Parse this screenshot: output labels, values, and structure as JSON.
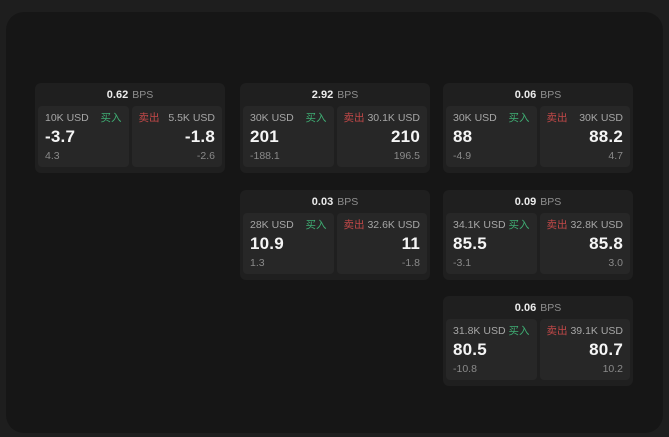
{
  "labels": {
    "buy": "买入",
    "sell": "卖出",
    "bps": "BPS"
  },
  "colors": {
    "background": "#1e1e1e",
    "window": "#161616",
    "card": "#1f1f1f",
    "panel": "#272727",
    "buy": "#3fae74",
    "sell": "#c24848"
  },
  "cards": [
    {
      "bps": "0.62",
      "buy": {
        "amount": "10K USD",
        "price": "-3.7",
        "delta": "4.3"
      },
      "sell": {
        "amount": "5.5K USD",
        "price": "-1.8",
        "delta": "-2.6"
      }
    },
    {
      "bps": "2.92",
      "buy": {
        "amount": "30K USD",
        "price": "201",
        "delta": "-188.1"
      },
      "sell": {
        "amount": "30.1K USD",
        "price": "210",
        "delta": "196.5"
      }
    },
    {
      "bps": "0.06",
      "buy": {
        "amount": "30K USD",
        "price": "88",
        "delta": "-4.9"
      },
      "sell": {
        "amount": "30K USD",
        "price": "88.2",
        "delta": "4.7"
      }
    },
    {
      "bps": "0.03",
      "buy": {
        "amount": "28K USD",
        "price": "10.9",
        "delta": "1.3"
      },
      "sell": {
        "amount": "32.6K USD",
        "price": "11",
        "delta": "-1.8"
      }
    },
    {
      "bps": "0.09",
      "buy": {
        "amount": "34.1K USD",
        "price": "85.5",
        "delta": "-3.1"
      },
      "sell": {
        "amount": "32.8K USD",
        "price": "85.8",
        "delta": "3.0"
      }
    },
    {
      "bps": "0.06",
      "buy": {
        "amount": "31.8K USD",
        "price": "80.5",
        "delta": "-10.8"
      },
      "sell": {
        "amount": "39.1K USD",
        "price": "80.7",
        "delta": "10.2"
      }
    }
  ]
}
